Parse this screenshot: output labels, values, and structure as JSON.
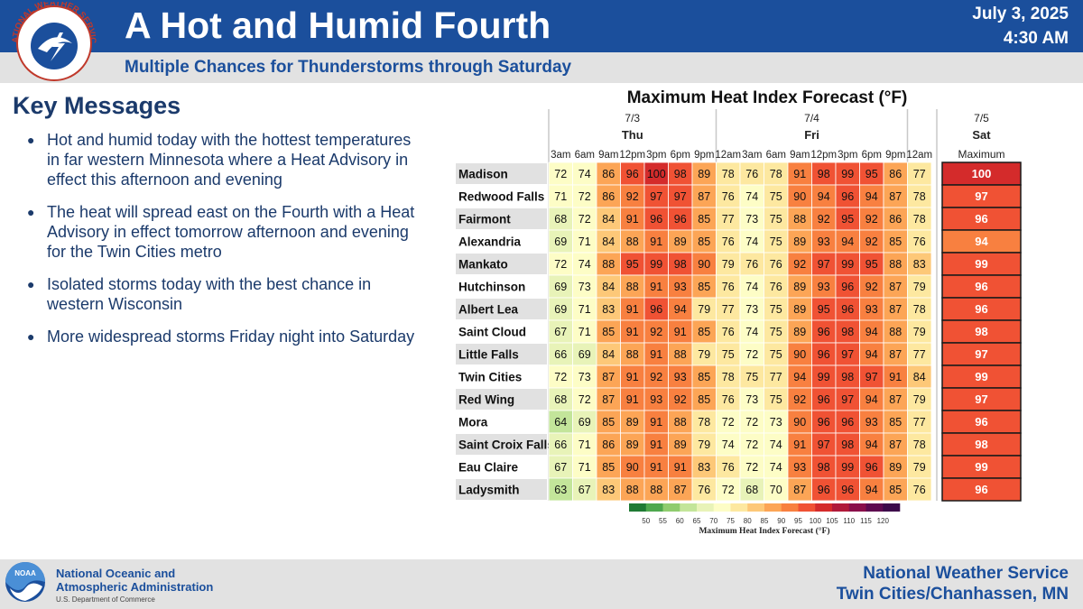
{
  "header": {
    "title": "A Hot and Humid Fourth",
    "subtitle": "Multiple Chances for Thunderstorms through Saturday",
    "date": "July 3, 2025",
    "time": "4:30 AM",
    "logo_text": "NATIONAL WEATHER SERVICE",
    "accent_color": "#1b4f9c"
  },
  "key_messages": {
    "title": "Key Messages",
    "items": [
      "Hot and humid today with the hottest temperatures in far western Minnesota where a Heat Advisory in effect this afternoon and evening",
      "The heat will spread east on the Fourth with a Heat Advisory in effect tomorrow afternoon and evening for the Twin Cities metro",
      "Isolated storms today with the best chance in western Wisconsin",
      "More widespread storms Friday night into Saturday"
    ]
  },
  "chart_data": {
    "type": "heatmap",
    "title": "Maximum Heat Index Forecast (°F)",
    "days": [
      {
        "date": "7/3",
        "name": "Thu",
        "hours": [
          "3am",
          "6am",
          "9am",
          "12pm",
          "3pm",
          "6pm",
          "9pm"
        ]
      },
      {
        "date": "7/4",
        "name": "Fri",
        "hours": [
          "12am",
          "3am",
          "6am",
          "9am",
          "12pm",
          "3pm",
          "6pm",
          "9pm"
        ]
      },
      {
        "date": "",
        "name": "",
        "hours": [
          "12am"
        ]
      }
    ],
    "max_column": {
      "date": "7/5",
      "name": "Sat",
      "label": "Maximum"
    },
    "rows": [
      {
        "location": "Madison",
        "values": [
          72,
          74,
          86,
          96,
          100,
          98,
          89,
          78,
          76,
          78,
          91,
          98,
          99,
          95,
          86,
          77
        ],
        "maximum": 100
      },
      {
        "location": "Redwood Falls",
        "values": [
          71,
          72,
          86,
          92,
          97,
          97,
          87,
          76,
          74,
          75,
          90,
          94,
          96,
          94,
          87,
          78
        ],
        "maximum": 97
      },
      {
        "location": "Fairmont",
        "values": [
          68,
          72,
          84,
          91,
          96,
          96,
          85,
          77,
          73,
          75,
          88,
          92,
          95,
          92,
          86,
          78
        ],
        "maximum": 96
      },
      {
        "location": "Alexandria",
        "values": [
          69,
          71,
          84,
          88,
          91,
          89,
          85,
          76,
          74,
          75,
          89,
          93,
          94,
          92,
          85,
          76
        ],
        "maximum": 94
      },
      {
        "location": "Mankato",
        "values": [
          72,
          74,
          88,
          95,
          99,
          98,
          90,
          79,
          76,
          76,
          92,
          97,
          99,
          95,
          88,
          83
        ],
        "maximum": 99
      },
      {
        "location": "Hutchinson",
        "values": [
          69,
          73,
          84,
          88,
          91,
          93,
          85,
          76,
          74,
          76,
          89,
          93,
          96,
          92,
          87,
          79
        ],
        "maximum": 96
      },
      {
        "location": "Albert Lea",
        "values": [
          69,
          71,
          83,
          91,
          96,
          94,
          79,
          77,
          73,
          75,
          89,
          95,
          96,
          93,
          87,
          78
        ],
        "maximum": 96
      },
      {
        "location": "Saint Cloud",
        "values": [
          67,
          71,
          85,
          91,
          92,
          91,
          85,
          76,
          74,
          75,
          89,
          96,
          98,
          94,
          88,
          79
        ],
        "maximum": 98
      },
      {
        "location": "Little Falls",
        "values": [
          66,
          69,
          84,
          88,
          91,
          88,
          79,
          75,
          72,
          75,
          90,
          96,
          97,
          94,
          87,
          77
        ],
        "maximum": 97
      },
      {
        "location": "Twin Cities",
        "values": [
          72,
          73,
          87,
          91,
          92,
          93,
          85,
          78,
          75,
          77,
          94,
          99,
          98,
          97,
          91,
          84
        ],
        "maximum": 99
      },
      {
        "location": "Red Wing",
        "values": [
          68,
          72,
          87,
          91,
          93,
          92,
          85,
          76,
          73,
          75,
          92,
          96,
          97,
          94,
          87,
          79
        ],
        "maximum": 97
      },
      {
        "location": "Mora",
        "values": [
          64,
          69,
          85,
          89,
          91,
          88,
          78,
          72,
          72,
          73,
          90,
          96,
          96,
          93,
          85,
          77
        ],
        "maximum": 96
      },
      {
        "location": "Saint Croix Falls",
        "values": [
          66,
          71,
          86,
          89,
          91,
          89,
          79,
          74,
          72,
          74,
          91,
          97,
          98,
          94,
          87,
          78
        ],
        "maximum": 98
      },
      {
        "location": "Eau Claire",
        "values": [
          67,
          71,
          85,
          90,
          91,
          91,
          83,
          76,
          72,
          74,
          93,
          98,
          99,
          96,
          89,
          79
        ],
        "maximum": 99
      },
      {
        "location": "Ladysmith",
        "values": [
          63,
          67,
          83,
          88,
          88,
          87,
          76,
          72,
          68,
          70,
          87,
          96,
          96,
          94,
          85,
          76
        ],
        "maximum": 96
      }
    ],
    "colorbar": {
      "label": "Maximum Heat Index Forecast (°F)",
      "ticks": [
        50,
        55,
        60,
        65,
        70,
        75,
        80,
        85,
        90,
        95,
        100,
        105,
        110,
        115,
        120
      ],
      "colors": [
        "#1f7a34",
        "#4ea84e",
        "#8fcc6e",
        "#c3e59a",
        "#e8f3b8",
        "#fdfdc6",
        "#fde8a0",
        "#fdc878",
        "#fca556",
        "#f88040",
        "#f05234",
        "#d42b2b",
        "#b01a3a",
        "#8a0f4a",
        "#5e0a50",
        "#3d0a4a"
      ]
    }
  },
  "footer": {
    "agency_line1": "National Oceanic and",
    "agency_line2": "Atmospheric Administration",
    "department": "U.S. Department of Commerce",
    "logo_text": "NOAA",
    "office_line1": "National Weather Service",
    "office_line2": "Twin Cities/Chanhassen, MN"
  }
}
